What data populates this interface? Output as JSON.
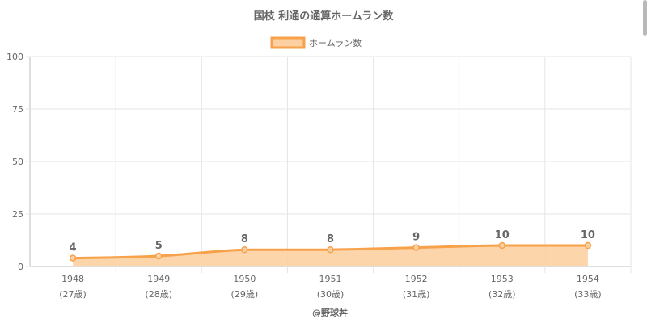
{
  "chart_data": {
    "type": "area",
    "title": "国枝 利通の通算ホームラン数",
    "categories": [
      "1948",
      "1949",
      "1950",
      "1951",
      "1952",
      "1953",
      "1954"
    ],
    "category_sublabels": [
      "(27歳)",
      "(28歳)",
      "(29歳)",
      "(30歳)",
      "(31歳)",
      "(32歳)",
      "(33歳)"
    ],
    "series": [
      {
        "name": "ホームラン数",
        "values": [
          4,
          5,
          8,
          8,
          9,
          10,
          10
        ]
      }
    ],
    "data_labels": [
      "4",
      "5",
      "8",
      "8",
      "9",
      "10",
      "10"
    ],
    "ylim": [
      0,
      100
    ],
    "yticks": [
      0,
      25,
      50,
      75,
      100
    ],
    "ytick_labels": [
      "0",
      "25",
      "50",
      "75",
      "100"
    ],
    "grid": true,
    "legend_position": "top-center",
    "source": "@野球丼"
  },
  "colors": {
    "line": "#f7a14a",
    "fill": "#fdd0a2",
    "grid": "#e5e5e5",
    "axis": "#bdbdbd",
    "text": "#666666",
    "title": "#666666",
    "label": "#666666"
  },
  "scrollbar": {
    "present": true
  }
}
